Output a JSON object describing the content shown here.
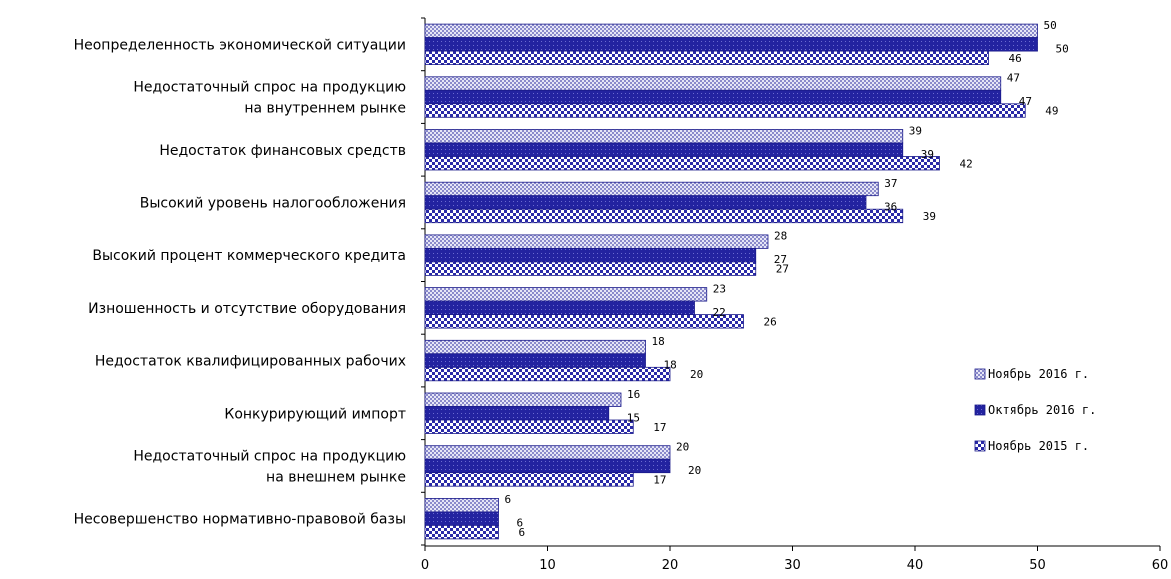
{
  "chart_data": {
    "type": "bar",
    "orientation": "horizontal",
    "categories": [
      [
        "Неопределенность экономической ситуации"
      ],
      [
        "Недостаточный спрос на продукцию",
        "на внутреннем рынке"
      ],
      [
        "Недостаток финансовых  средств"
      ],
      [
        "Высокий  уровень налогообложения"
      ],
      [
        "Высокий  процент коммерческого кредита"
      ],
      [
        "Изношенность и отсутствие оборудования"
      ],
      [
        "Недостаток квалифицированных  рабочих"
      ],
      [
        "Конкурирующий импорт"
      ],
      [
        "Недостаточный спрос на продукцию",
        "на внешнем рынке"
      ],
      [
        "Несовершенство нормативно-правовой базы"
      ]
    ],
    "series": [
      {
        "name": "Ноябрь 2016 г.",
        "values": [
          50,
          47,
          39,
          37,
          28,
          23,
          18,
          16,
          20,
          6
        ],
        "color": "#c8c8e8",
        "pattern": "checker"
      },
      {
        "name": "Октябрь 2016 г.",
        "values": [
          50,
          47,
          39,
          36,
          27,
          22,
          18,
          15,
          20,
          6
        ],
        "color": "#2a2aa8",
        "pattern": "dark-dots"
      },
      {
        "name": "Ноябрь 2015 г.",
        "values": [
          46,
          49,
          42,
          39,
          27,
          26,
          20,
          17,
          17,
          6
        ],
        "color": "#ffffff",
        "pattern": "blue-dots"
      }
    ],
    "xlim": [
      0,
      60
    ],
    "xticks": [
      0,
      10,
      20,
      30,
      40,
      50,
      60
    ],
    "legend_position": "right",
    "grid": false
  }
}
